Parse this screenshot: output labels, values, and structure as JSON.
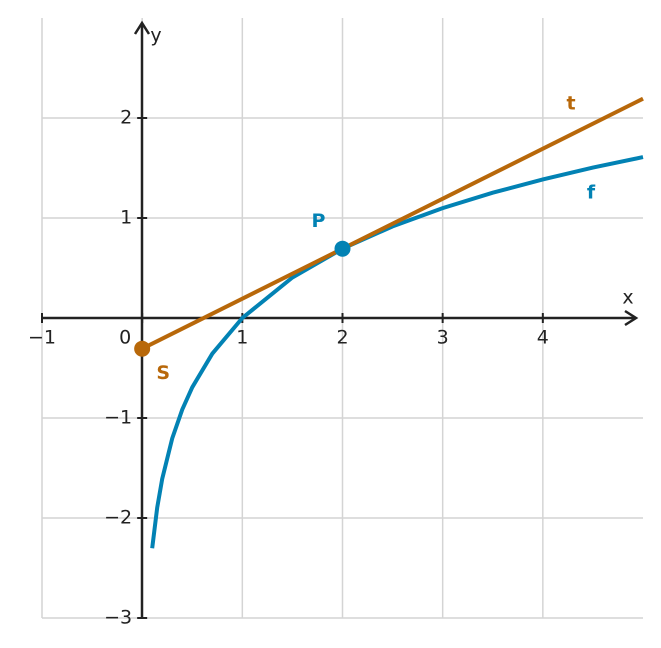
{
  "chart_data": {
    "type": "line",
    "xlabel": "x",
    "ylabel": "y",
    "xlim": [
      -1,
      5
    ],
    "ylim": [
      -3,
      3
    ],
    "xticks": [
      {
        "value": -1,
        "label": "−1"
      },
      0,
      1,
      2,
      3,
      4
    ],
    "yticks": [
      {
        "value": -3,
        "label": "−3"
      },
      {
        "value": -2,
        "label": "−2"
      },
      {
        "value": -1,
        "label": "−1"
      },
      1,
      2
    ],
    "grid": true,
    "series": [
      {
        "name": "f",
        "color": "#0282b4",
        "x": [
          0.1,
          0.15,
          0.2,
          0.3,
          0.4,
          0.5,
          0.7,
          1,
          1.5,
          2,
          2.5,
          3,
          3.5,
          4,
          4.5,
          5
        ],
        "values": [
          -2.303,
          -1.897,
          -1.609,
          -1.204,
          -0.916,
          -0.693,
          -0.357,
          0,
          0.405,
          0.693,
          0.916,
          1.099,
          1.253,
          1.386,
          1.504,
          1.609
        ]
      },
      {
        "name": "t",
        "color": "#b8680a",
        "x": [
          0,
          5
        ],
        "values": [
          -0.307,
          2.193
        ]
      }
    ],
    "points": [
      {
        "label": "P",
        "x": 2,
        "y": 0.693,
        "color": "#0282b4"
      },
      {
        "label": "S",
        "x": 0,
        "y": -0.307,
        "color": "#b8680a"
      }
    ]
  }
}
